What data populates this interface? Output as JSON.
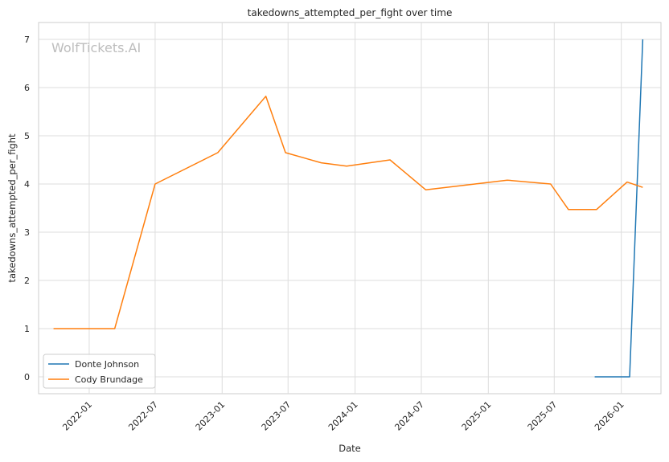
{
  "chart_data": {
    "type": "line",
    "title": "takedowns_attempted_per_fight over time",
    "xlabel": "Date",
    "ylabel": "takedowns_attempted_per_fight",
    "watermark": "WolfTickets.AI",
    "xlim": [
      "2021-08-15",
      "2026-04-20"
    ],
    "ylim": [
      -0.35,
      7.35
    ],
    "x_ticks": [
      "2022-01",
      "2022-07",
      "2023-01",
      "2023-07",
      "2024-01",
      "2024-07",
      "2025-01",
      "2025-07",
      "2026-01"
    ],
    "y_ticks": [
      0,
      1,
      2,
      3,
      4,
      5,
      6,
      7
    ],
    "grid": true,
    "legend_position": "lower-left",
    "series": [
      {
        "name": "Donte Johnson",
        "color": "#1f77b4",
        "points": [
          {
            "x": "2025-10-20",
            "y": 0
          },
          {
            "x": "2026-01-24",
            "y": 0
          },
          {
            "x": "2026-03-01",
            "y": 7
          }
        ]
      },
      {
        "name": "Cody Brundage",
        "color": "#ff7f0e",
        "points": [
          {
            "x": "2021-09-25",
            "y": 1.0
          },
          {
            "x": "2022-03-12",
            "y": 1.0
          },
          {
            "x": "2022-07-01",
            "y": 4.0
          },
          {
            "x": "2022-12-20",
            "y": 4.65
          },
          {
            "x": "2023-05-01",
            "y": 5.82
          },
          {
            "x": "2023-06-24",
            "y": 4.65
          },
          {
            "x": "2023-09-30",
            "y": 4.44
          },
          {
            "x": "2023-12-09",
            "y": 4.37
          },
          {
            "x": "2024-04-06",
            "y": 4.5
          },
          {
            "x": "2024-07-13",
            "y": 3.88
          },
          {
            "x": "2025-02-22",
            "y": 4.08
          },
          {
            "x": "2025-06-21",
            "y": 4.0
          },
          {
            "x": "2025-08-09",
            "y": 3.47
          },
          {
            "x": "2025-10-25",
            "y": 3.47
          },
          {
            "x": "2026-01-17",
            "y": 4.04
          },
          {
            "x": "2026-03-01",
            "y": 3.93
          }
        ]
      }
    ]
  }
}
